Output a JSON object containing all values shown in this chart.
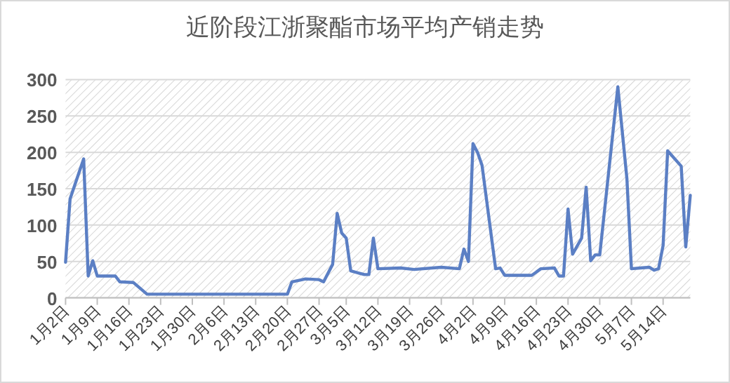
{
  "chart_data": {
    "type": "line",
    "title": "近阶段江浙聚酯市场平均产销走势",
    "x": [
      "--01-02",
      "--01-03",
      "--01-06",
      "--01-07",
      "--01-08",
      "--01-09",
      "--01-13",
      "--01-14",
      "--01-17",
      "--01-20",
      "--02-20",
      "--02-21",
      "--02-24",
      "--02-27",
      "--02-28",
      "--03-02",
      "--03-03",
      "--03-04",
      "--03-05",
      "--03-06",
      "--03-09",
      "--03-10",
      "--03-11",
      "--03-12",
      "--03-17",
      "--03-20",
      "--03-26",
      "--03-30",
      "--03-31",
      "--04-01",
      "--04-02",
      "--04-03",
      "--04-04",
      "--04-07",
      "--04-08",
      "--04-09",
      "--04-15",
      "--04-17",
      "--04-20",
      "--04-21",
      "--04-22",
      "--04-23",
      "--04-24",
      "--04-26",
      "--04-27",
      "--04-28",
      "--04-29",
      "--04-30",
      "--05-04",
      "--05-06",
      "--05-07",
      "--05-09",
      "--05-11",
      "--05-12",
      "--05-13",
      "--05-14",
      "--05-15",
      "--05-18",
      "--05-19",
      "--05-20"
    ],
    "series": [
      {
        "color": "#5b7fc4",
        "values": [
          49,
          136,
          191,
          30,
          51,
          30,
          30,
          22,
          21,
          5,
          5,
          22,
          26,
          25,
          22,
          46,
          116,
          89,
          82,
          37,
          32,
          32,
          82,
          40,
          41,
          39,
          42,
          40,
          67,
          50,
          212,
          200,
          182,
          40,
          41,
          31,
          31,
          40,
          41,
          30,
          30,
          122,
          60,
          82,
          152,
          51,
          59,
          59,
          290,
          164,
          40,
          41,
          42,
          38,
          40,
          72,
          202,
          181,
          70,
          141
        ]
      }
    ],
    "xlim": [
      "--01-02",
      "--05-20"
    ],
    "xticks": [
      {
        "value": "--01-02",
        "label": "1月2日"
      },
      {
        "value": "--01-09",
        "label": "1月9日"
      },
      {
        "value": "--01-16",
        "label": "1月16日"
      },
      {
        "value": "--01-23",
        "label": "1月23日"
      },
      {
        "value": "--01-30",
        "label": "1月30日"
      },
      {
        "value": "--02-06",
        "label": "2月6日"
      },
      {
        "value": "--02-13",
        "label": "2月13日"
      },
      {
        "value": "--02-20",
        "label": "2月20日"
      },
      {
        "value": "--02-27",
        "label": "2月27日"
      },
      {
        "value": "--03-05",
        "label": "3月5日"
      },
      {
        "value": "--03-12",
        "label": "3月12日"
      },
      {
        "value": "--03-19",
        "label": "3月19日"
      },
      {
        "value": "--03-26",
        "label": "3月26日"
      },
      {
        "value": "--04-02",
        "label": "4月2日"
      },
      {
        "value": "--04-09",
        "label": "4月9日"
      },
      {
        "value": "--04-16",
        "label": "4月16日"
      },
      {
        "value": "--04-23",
        "label": "4月23日"
      },
      {
        "value": "--04-30",
        "label": "4月30日"
      },
      {
        "value": "--05-07",
        "label": "5月7日"
      },
      {
        "value": "--05-14",
        "label": "5月14日"
      }
    ],
    "ylim": [
      0,
      300
    ],
    "yticks": [
      0,
      50,
      100,
      150,
      200,
      250,
      300
    ],
    "grid": "y",
    "marker": "none",
    "line_style": "solid"
  }
}
